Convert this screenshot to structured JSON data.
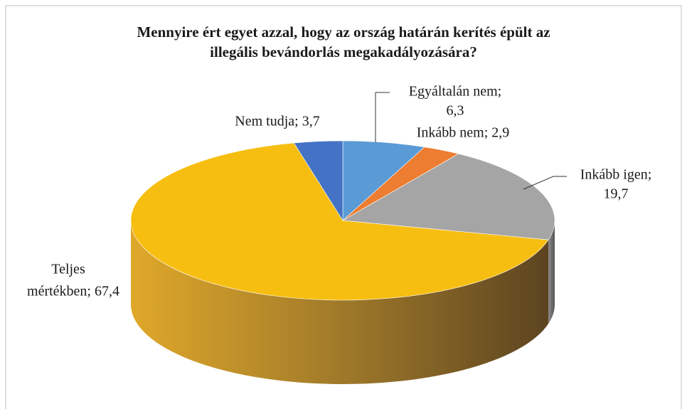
{
  "chart_data": {
    "type": "pie3d",
    "title": [
      "Mennyire ért egyet azzal, hogy az ország határán kerítés épült az",
      "illegális bevándorlás megakadályozására?"
    ],
    "values": [
      6.3,
      2.9,
      19.7,
      67.4,
      3.7
    ],
    "labels": [
      [
        "Egyáltalán nem;",
        "6,3"
      ],
      [
        "Inkább nem; 2,9"
      ],
      [
        "Inkább igen;",
        "19,7"
      ],
      [
        "Teljes",
        "mértékben; 67,4"
      ],
      [
        "Nem tudja; 3,7"
      ]
    ],
    "colors": [
      "#5b9bd5",
      "#ed7d31",
      "#a5a5a5",
      "#f7be12",
      "#4472c4"
    ]
  }
}
